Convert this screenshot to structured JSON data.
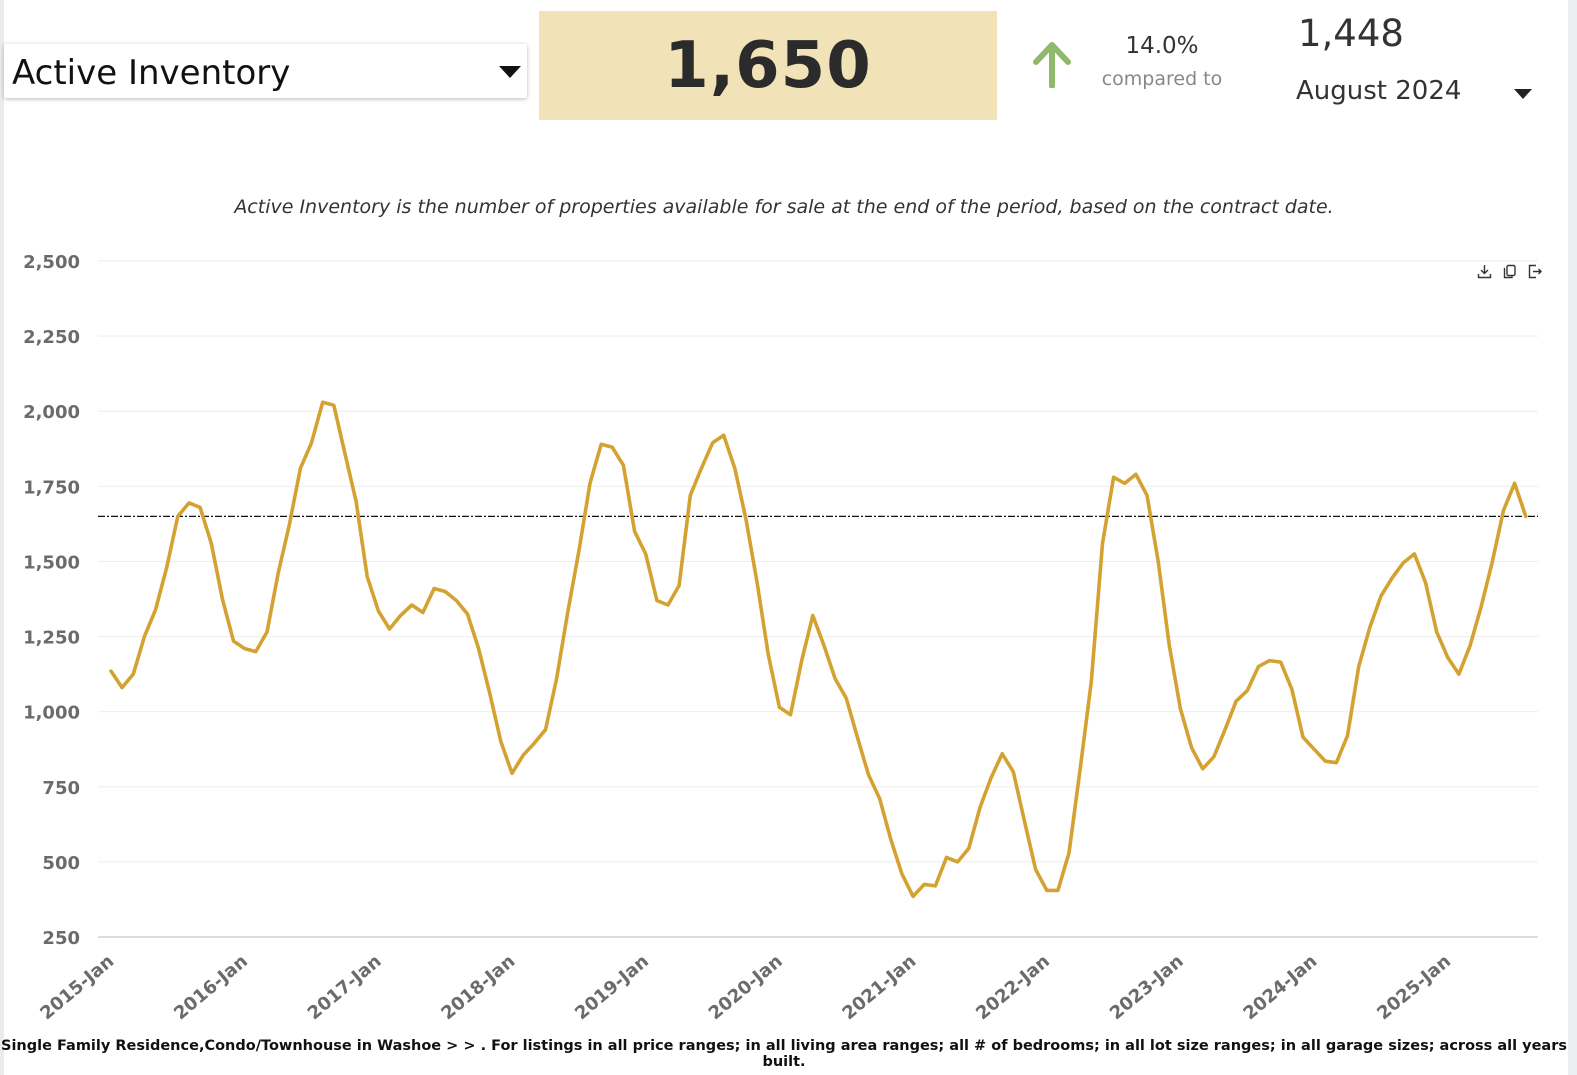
{
  "metric_select": {
    "label": "Active Inventory"
  },
  "current_value": "1,650",
  "change": {
    "direction": "up",
    "percent": "14.0%",
    "compared_to": "compared to",
    "arrow_color": "#8fba6b"
  },
  "previous": {
    "value": "1,448",
    "period_label": "August 2024"
  },
  "description": "Active Inventory is the number of properties available for sale at the end of the period, based on the contract date.",
  "toolbar": {
    "icons": [
      "download-icon",
      "copy-icon",
      "export-icon"
    ]
  },
  "colors": {
    "line": "#d4a231",
    "value_box": "#f1e2b8",
    "reference_line": "#111111",
    "gridline": "#eeeeee"
  },
  "footnote": "Single Family Residence,Condo/Townhouse in Washoe > > . For listings in all price ranges; in all living area ranges; all # of bedrooms; in all lot size ranges; in all garage sizes; across all years built.",
  "chart_data": {
    "type": "line",
    "ylim": [
      250,
      2500
    ],
    "yticks": [
      "2,500",
      "2,250",
      "2,000",
      "1,750",
      "1,500",
      "1,250",
      "1,000",
      "750",
      "500",
      "250"
    ],
    "ytick_values": [
      2500,
      2250,
      2000,
      1750,
      1500,
      1250,
      1000,
      750,
      500,
      250
    ],
    "xtick_labels": [
      "2015-Jan",
      "2016-Jan",
      "2017-Jan",
      "2018-Jan",
      "2019-Jan",
      "2020-Jan",
      "2021-Jan",
      "2022-Jan",
      "2023-Jan",
      "2024-Jan",
      "2025-Jan"
    ],
    "start_month": "2015-Jan",
    "grid": true,
    "reference_line": 1650,
    "series": [
      {
        "values": [
          1135,
          1080,
          1125,
          1250,
          1340,
          1480,
          1650,
          1695,
          1680,
          1560,
          1375,
          1235,
          1210,
          1200,
          1265,
          1460,
          1620,
          1810,
          1895,
          2030,
          2020,
          1860,
          1700,
          1450,
          1335,
          1275,
          1320,
          1355,
          1330,
          1410,
          1400,
          1370,
          1325,
          1210,
          1060,
          900,
          795,
          855,
          895,
          940,
          1110,
          1330,
          1535,
          1760,
          1890,
          1880,
          1820,
          1600,
          1525,
          1370,
          1355,
          1420,
          1720,
          1810,
          1895,
          1920,
          1810,
          1640,
          1430,
          1190,
          1015,
          990,
          1170,
          1320,
          1220,
          1110,
          1045,
          915,
          790,
          710,
          575,
          460,
          385,
          425,
          420,
          515,
          500,
          545,
          680,
          780,
          860,
          800,
          635,
          475,
          405,
          405,
          530,
          810,
          1100,
          1560,
          1780,
          1760,
          1790,
          1720,
          1500,
          1220,
          1010,
          880,
          810,
          850,
          940,
          1035,
          1070,
          1150,
          1170,
          1165,
          1075,
          915,
          875,
          835,
          830,
          920,
          1150,
          1280,
          1385,
          1445,
          1495,
          1525,
          1430,
          1265,
          1180,
          1125,
          1220,
          1350,
          1500,
          1670,
          1760,
          1650
        ]
      }
    ]
  }
}
